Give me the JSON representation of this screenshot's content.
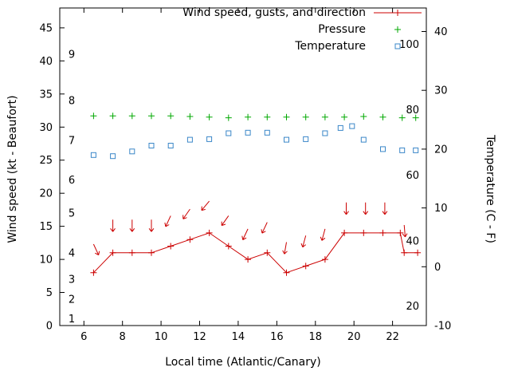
{
  "chart_data": {
    "type": "line",
    "title": "",
    "xlabel": "Local time (Atlantic/Canary)",
    "ylabel": "Wind speed (kt - Beaufort)",
    "y2label": "Temperature (C - F)",
    "xlim": [
      4.75,
      23.75
    ],
    "ylim": [
      0,
      48
    ],
    "y2lim": [
      -10,
      44
    ],
    "xticks": [
      6,
      8,
      10,
      12,
      14,
      16,
      18,
      20,
      22
    ],
    "yticks": [
      0,
      5,
      10,
      15,
      20,
      25,
      30,
      35,
      40,
      45
    ],
    "y2ticks": [
      -10,
      0,
      10,
      20,
      30,
      40
    ],
    "grid": false,
    "legend_position": "top-right",
    "axis_color": "#000000",
    "background": "#ffffff",
    "beaufort_scale": [
      {
        "beaufort": "1",
        "kt": 1
      },
      {
        "beaufort": "2",
        "kt": 4
      },
      {
        "beaufort": "3",
        "kt": 7
      },
      {
        "beaufort": "4",
        "kt": 11
      },
      {
        "beaufort": "5",
        "kt": 17
      },
      {
        "beaufort": "6",
        "kt": 22
      },
      {
        "beaufort": "7",
        "kt": 28
      },
      {
        "beaufort": "8",
        "kt": 34
      },
      {
        "beaufort": "9",
        "kt": 41
      }
    ],
    "fahrenheit_scale": [
      {
        "f": "20",
        "celsius": -6.7
      },
      {
        "f": "40",
        "celsius": 4.4
      },
      {
        "f": "60",
        "celsius": 15.6
      },
      {
        "f": "80",
        "celsius": 26.7
      },
      {
        "f": "100",
        "celsius": 37.8
      }
    ],
    "series": [
      {
        "id": "wind",
        "name": "Wind speed, gusts, and direction",
        "axis": "left",
        "color": "#cc0000",
        "marker": "plus",
        "line": true,
        "x": [
          6.5,
          7.5,
          8.5,
          9.5,
          10.5,
          11.5,
          12.5,
          13.5,
          14.5,
          15.5,
          16.5,
          17.5,
          18.5,
          19.5,
          20.5,
          21.5,
          22.4,
          22.6,
          23.3
        ],
        "y": [
          8,
          11,
          11,
          11,
          12,
          13,
          14,
          12,
          10,
          11,
          8,
          9,
          10,
          14,
          14,
          14,
          14,
          11,
          11
        ]
      },
      {
        "id": "pressure",
        "name": "Pressure",
        "axis": "left",
        "color": "#00a800",
        "marker": "plus",
        "line": false,
        "x": [
          6.5,
          7.5,
          8.5,
          9.5,
          10.5,
          11.5,
          12.5,
          13.5,
          14.5,
          15.5,
          16.5,
          17.5,
          18.5,
          19.5,
          20.5,
          21.5,
          22.5,
          23.2
        ],
        "y": [
          31.7,
          31.7,
          31.7,
          31.7,
          31.7,
          31.6,
          31.5,
          31.4,
          31.5,
          31.5,
          31.5,
          31.5,
          31.5,
          31.5,
          31.6,
          31.5,
          31.4,
          31.4
        ]
      },
      {
        "id": "temperature",
        "name": "Temperature",
        "axis": "right",
        "color": "#3a87c8",
        "marker": "square",
        "line": false,
        "x": [
          6.5,
          7.5,
          8.5,
          9.5,
          10.5,
          11.5,
          12.5,
          13.5,
          14.5,
          15.5,
          16.5,
          17.5,
          18.5,
          19.3,
          19.9,
          20.5,
          21.5,
          22.5,
          23.2
        ],
        "y": [
          19,
          18.8,
          19.6,
          20.6,
          20.6,
          21.6,
          21.7,
          22.7,
          22.8,
          22.8,
          21.6,
          21.7,
          22.7,
          23.6,
          23.9,
          21.6,
          20,
          19.8,
          19.8
        ]
      }
    ],
    "wind_arrows": [
      {
        "t": 6.5,
        "kt": 12.3,
        "angle": 65
      },
      {
        "t": 7.5,
        "kt": 16.0,
        "angle": 90
      },
      {
        "t": 8.5,
        "kt": 16.0,
        "angle": 90
      },
      {
        "t": 9.5,
        "kt": 16.0,
        "angle": 90
      },
      {
        "t": 10.5,
        "kt": 16.6,
        "angle": 115
      },
      {
        "t": 11.5,
        "kt": 17.6,
        "angle": 125
      },
      {
        "t": 12.5,
        "kt": 18.8,
        "angle": 130
      },
      {
        "t": 13.5,
        "kt": 16.6,
        "angle": 125
      },
      {
        "t": 14.5,
        "kt": 14.6,
        "angle": 115
      },
      {
        "t": 15.5,
        "kt": 15.6,
        "angle": 115
      },
      {
        "t": 16.5,
        "kt": 12.6,
        "angle": 100
      },
      {
        "t": 17.5,
        "kt": 13.6,
        "angle": 105
      },
      {
        "t": 18.5,
        "kt": 14.6,
        "angle": 105
      },
      {
        "t": 19.6,
        "kt": 18.6,
        "angle": 90
      },
      {
        "t": 20.6,
        "kt": 18.6,
        "angle": 90
      },
      {
        "t": 21.6,
        "kt": 18.6,
        "angle": 90
      },
      {
        "t": 22.6,
        "kt": 15.2,
        "angle": 85
      }
    ]
  }
}
